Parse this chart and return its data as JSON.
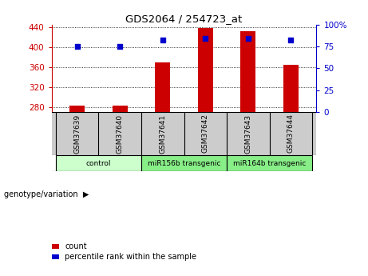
{
  "title": "GDS2064 / 254723_at",
  "samples": [
    "GSM37639",
    "GSM37640",
    "GSM37641",
    "GSM37642",
    "GSM37643",
    "GSM37644"
  ],
  "counts": [
    283,
    283,
    370,
    438,
    433,
    365
  ],
  "percentiles": [
    75,
    75,
    83,
    84,
    84,
    83
  ],
  "ylim_left": [
    270,
    445
  ],
  "ylim_right": [
    0,
    100
  ],
  "yticks_left": [
    280,
    320,
    360,
    400,
    440
  ],
  "yticks_right": [
    0,
    25,
    50,
    75,
    100
  ],
  "ytick_labels_right": [
    "0",
    "25",
    "50",
    "75",
    "100%"
  ],
  "bar_color": "#cc0000",
  "dot_color": "#0000cc",
  "bar_width": 0.35,
  "groups": [
    {
      "label": "control",
      "indices": [
        0,
        1
      ]
    },
    {
      "label": "miR156b transgenic",
      "indices": [
        2,
        3
      ]
    },
    {
      "label": "miR164b transgenic",
      "indices": [
        4,
        5
      ]
    }
  ],
  "xlabel_annotation": "genotype/variation",
  "legend_count_label": "count",
  "legend_percentile_label": "percentile rank within the sample",
  "background_plot": "#ffffff",
  "background_label_row": "#cccccc",
  "background_group_control": "#ccffcc",
  "background_group_mir156": "#88ee88",
  "background_group_mir164": "#88ee88"
}
